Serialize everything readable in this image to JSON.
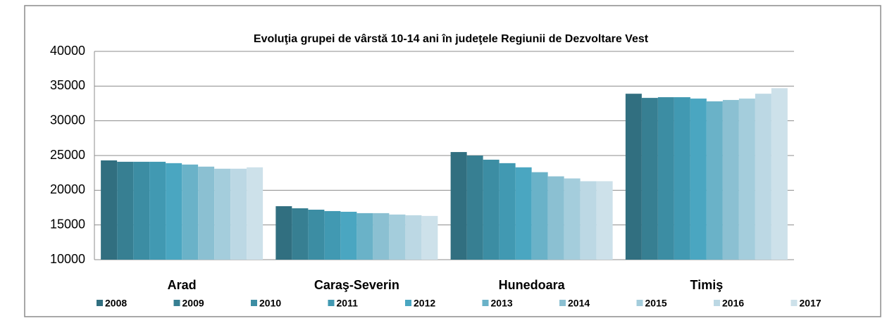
{
  "chart_data": {
    "type": "bar",
    "title": "Evoluţia grupei de vârstă 10-14 ani în judeţele Regiunii de Dezvoltare  Vest",
    "categories": [
      "Arad",
      "Caraş-Severin",
      "Hunedoara",
      "Timiş"
    ],
    "series": [
      {
        "name": "2008",
        "color": "#316f80",
        "values": [
          24300,
          17700,
          25500,
          33900
        ]
      },
      {
        "name": "2009",
        "color": "#377f92",
        "values": [
          24100,
          17400,
          25000,
          33300
        ]
      },
      {
        "name": "2010",
        "color": "#3c8da3",
        "values": [
          24100,
          17200,
          24400,
          33400
        ]
      },
      {
        "name": "2011",
        "color": "#4199b2",
        "values": [
          24100,
          17000,
          23900,
          33400
        ]
      },
      {
        "name": "2012",
        "color": "#4aa6c1",
        "values": [
          23900,
          16900,
          23300,
          33200
        ]
      },
      {
        "name": "2013",
        "color": "#6ab2c8",
        "values": [
          23700,
          16700,
          22600,
          32800
        ]
      },
      {
        "name": "2014",
        "color": "#8bc0d2",
        "values": [
          23400,
          16700,
          22000,
          33000
        ]
      },
      {
        "name": "2015",
        "color": "#a4cddc",
        "values": [
          23100,
          16500,
          21700,
          33200
        ]
      },
      {
        "name": "2016",
        "color": "#bcd8e4",
        "values": [
          23100,
          16400,
          21300,
          33900
        ]
      },
      {
        "name": "2017",
        "color": "#cde1ea",
        "values": [
          23300,
          16300,
          21300,
          34700
        ]
      }
    ],
    "ylim": [
      10000,
      40000
    ],
    "yticks": [
      10000,
      15000,
      20000,
      25000,
      30000,
      35000,
      40000
    ],
    "grid": true,
    "legend": "bottom"
  }
}
